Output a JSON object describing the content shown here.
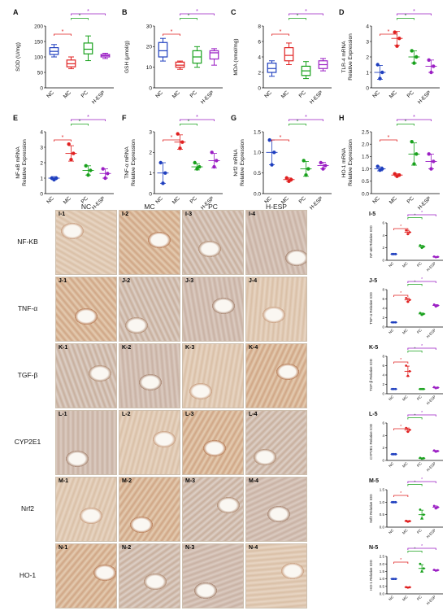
{
  "groups": [
    "NC",
    "MC",
    "PC",
    "H-ESP"
  ],
  "colors": {
    "NC": "#1f3fbf",
    "MC": "#e02020",
    "PC": "#18a11c",
    "H-ESP": "#9b1fc4",
    "sig": "#e02020"
  },
  "sig_marker": "*",
  "tissue_columns": [
    "NC",
    "MC",
    "PC",
    "H-ESP"
  ],
  "tissue_rows": [
    {
      "stain": "NF-KB",
      "panels": [
        "I-1",
        "I-2",
        "I-3",
        "I-4"
      ]
    },
    {
      "stain": "TNF-α",
      "panels": [
        "J-1",
        "J-2",
        "J-3",
        "J-4"
      ]
    },
    {
      "stain": "TGF-β",
      "panels": [
        "K-1",
        "K-2",
        "K-3",
        "K-4"
      ]
    },
    {
      "stain": "CYP2E1",
      "panels": [
        "L-1",
        "L-2",
        "L-3",
        "L-4"
      ]
    },
    {
      "stain": "Nrf2",
      "panels": [
        "M-1",
        "M-2",
        "M-3",
        "M-4"
      ]
    },
    {
      "stain": "HO-1",
      "panels": [
        "N-1",
        "N-2",
        "N-3",
        "N-4"
      ]
    }
  ],
  "chart_data": [
    {
      "panel": "A",
      "type": "box",
      "ylabel": "SOD (U/mg)",
      "ylim": [
        0,
        200
      ],
      "yticks": [
        0,
        50,
        100,
        150,
        200
      ],
      "boxes": [
        {
          "min": 100,
          "q1": 108,
          "median": 118,
          "q3": 130,
          "max": 140
        },
        {
          "min": 62,
          "q1": 68,
          "median": 78,
          "q3": 90,
          "max": 100
        },
        {
          "min": 88,
          "q1": 110,
          "median": 125,
          "q3": 145,
          "max": 168
        },
        {
          "min": 95,
          "q1": 100,
          "median": 104,
          "q3": 108,
          "max": 112
        }
      ],
      "brackets": [
        {
          "from": 0,
          "to": 1
        },
        {
          "from": 1,
          "to": 2
        },
        {
          "from": 1,
          "to": 3
        }
      ]
    },
    {
      "panel": "B",
      "type": "box",
      "ylabel": "GSH (μmol/g)",
      "ylim": [
        0,
        30
      ],
      "yticks": [
        0,
        10,
        20,
        30
      ],
      "boxes": [
        {
          "min": 13,
          "q1": 15,
          "median": 18,
          "q3": 22,
          "max": 24
        },
        {
          "min": 9,
          "q1": 10,
          "median": 11,
          "q3": 12.5,
          "max": 13
        },
        {
          "min": 10,
          "q1": 12,
          "median": 15,
          "q3": 18,
          "max": 20
        },
        {
          "min": 11,
          "q1": 14,
          "median": 17,
          "q3": 18,
          "max": 19
        }
      ],
      "brackets": [
        {
          "from": 0,
          "to": 1
        },
        {
          "from": 1,
          "to": 2
        },
        {
          "from": 1,
          "to": 3
        }
      ]
    },
    {
      "panel": "C",
      "type": "box",
      "ylabel": "MDA (nmol/mg)",
      "ylim": [
        0,
        8
      ],
      "yticks": [
        0,
        2,
        4,
        6,
        8
      ],
      "boxes": [
        {
          "min": 1.5,
          "q1": 2,
          "median": 2.5,
          "q3": 3.2,
          "max": 3.5
        },
        {
          "min": 3,
          "q1": 3.5,
          "median": 4.2,
          "q3": 5.2,
          "max": 5.8
        },
        {
          "min": 1.2,
          "q1": 1.6,
          "median": 2.2,
          "q3": 2.8,
          "max": 3.4
        },
        {
          "min": 2.2,
          "q1": 2.5,
          "median": 3,
          "q3": 3.5,
          "max": 3.8
        }
      ],
      "brackets": [
        {
          "from": 0,
          "to": 1
        },
        {
          "from": 1,
          "to": 2
        },
        {
          "from": 1,
          "to": 3
        }
      ]
    },
    {
      "panel": "D",
      "type": "scatter",
      "ylabel": "TLR-4 mRNA\nRelative Expression",
      "ylim": [
        0,
        4
      ],
      "yticks": [
        0,
        1,
        2,
        3,
        4
      ],
      "points": [
        [
          1.5,
          0.6,
          1.0
        ],
        [
          3.6,
          2.7,
          3.2
        ],
        [
          2.4,
          1.6,
          2.0
        ],
        [
          1.8,
          1.0,
          1.4
        ]
      ],
      "means": [
        1.0,
        3.2,
        2.0,
        1.4
      ],
      "sd": [
        0.45,
        0.45,
        0.4,
        0.4
      ],
      "brackets": [
        {
          "from": 0,
          "to": 1
        },
        {
          "from": 1,
          "to": 2
        },
        {
          "from": 1,
          "to": 3
        }
      ]
    },
    {
      "panel": "E",
      "type": "scatter",
      "ylabel": "NF-κB mRNA\nRelative Expression",
      "ylim": [
        0,
        4
      ],
      "yticks": [
        0,
        1,
        2,
        3,
        4
      ],
      "points": [
        [
          1.0,
          0.9,
          1.0
        ],
        [
          3.2,
          2.2,
          2.6
        ],
        [
          1.8,
          1.2,
          1.5
        ],
        [
          1.6,
          1.0,
          1.3
        ]
      ],
      "means": [
        1.0,
        2.6,
        1.5,
        1.3
      ],
      "sd": [
        0.1,
        0.5,
        0.3,
        0.3
      ],
      "brackets": [
        {
          "from": 0,
          "to": 1
        },
        {
          "from": 1,
          "to": 2
        },
        {
          "from": 1,
          "to": 3
        }
      ]
    },
    {
      "panel": "F",
      "type": "scatter",
      "ylabel": "TNF-α mRNA\nRelative Expression",
      "ylim": [
        0,
        3
      ],
      "yticks": [
        0,
        1,
        2,
        3
      ],
      "points": [
        [
          1.5,
          0.5,
          1.0
        ],
        [
          2.9,
          2.2,
          2.5
        ],
        [
          1.5,
          1.2,
          1.3
        ],
        [
          2.0,
          1.3,
          1.6
        ]
      ],
      "means": [
        1.0,
        2.5,
        1.3,
        1.6
      ],
      "sd": [
        0.5,
        0.35,
        0.15,
        0.35
      ],
      "brackets": [
        {
          "from": 0,
          "to": 1
        },
        {
          "from": 1,
          "to": 2
        },
        {
          "from": 1,
          "to": 3
        }
      ]
    },
    {
      "panel": "G",
      "type": "scatter",
      "ylabel": "Nrf2 mRNA\nRelative Expression",
      "ylim": [
        0.0,
        1.5
      ],
      "yticks": [
        0.0,
        0.5,
        1.0,
        1.5
      ],
      "points": [
        [
          1.3,
          0.7,
          1.0
        ],
        [
          0.38,
          0.3,
          0.34
        ],
        [
          0.8,
          0.45,
          0.6
        ],
        [
          0.75,
          0.6,
          0.68
        ]
      ],
      "means": [
        1.0,
        0.34,
        0.6,
        0.68
      ],
      "sd": [
        0.3,
        0.04,
        0.18,
        0.08
      ],
      "brackets": [
        {
          "from": 0,
          "to": 1
        },
        {
          "from": 1,
          "to": 2
        },
        {
          "from": 1,
          "to": 3
        }
      ]
    },
    {
      "panel": "H",
      "type": "scatter",
      "ylabel": "HO-1 mRNA\nRelative Expression",
      "ylim": [
        0.0,
        2.5
      ],
      "yticks": [
        0.0,
        0.5,
        1.0,
        1.5,
        2.0,
        2.5
      ],
      "points": [
        [
          1.1,
          0.95,
          1.0
        ],
        [
          0.8,
          0.7,
          0.75
        ],
        [
          2.1,
          1.2,
          1.6
        ],
        [
          1.6,
          1.0,
          1.3
        ]
      ],
      "means": [
        1.0,
        0.75,
        1.6,
        1.3
      ],
      "sd": [
        0.08,
        0.05,
        0.45,
        0.3
      ],
      "brackets": [
        {
          "from": 0,
          "to": 1
        },
        {
          "from": 1,
          "to": 2
        },
        {
          "from": 1,
          "to": 3
        }
      ]
    },
    {
      "panel": "I-5",
      "type": "scatter",
      "ylabel": "NF-κB Relative IOD",
      "ylim": [
        0,
        6
      ],
      "yticks": [
        0,
        2,
        4,
        6
      ],
      "points": [
        [
          1,
          1,
          1
        ],
        [
          4.8,
          4.2,
          4.5
        ],
        [
          2.4,
          2.0,
          2.2
        ],
        [
          0.6,
          0.5,
          0.55
        ]
      ],
      "means": [
        1,
        4.5,
        2.2,
        0.55
      ],
      "sd": [
        0,
        0.3,
        0.2,
        0.05
      ],
      "brackets": [
        {
          "from": 0,
          "to": 1
        },
        {
          "from": 1,
          "to": 2
        },
        {
          "from": 1,
          "to": 3
        }
      ]
    },
    {
      "panel": "J-5",
      "type": "scatter",
      "ylabel": "TNF-α Relative IOD",
      "ylim": [
        0,
        8
      ],
      "yticks": [
        0,
        2,
        4,
        6,
        8
      ],
      "points": [
        [
          1,
          1,
          1
        ],
        [
          6.2,
          5.4,
          5.8
        ],
        [
          3.0,
          2.6,
          2.8
        ],
        [
          4.8,
          4.4,
          4.6
        ]
      ],
      "means": [
        1,
        5.8,
        2.8,
        4.6
      ],
      "sd": [
        0,
        0.4,
        0.2,
        0.2
      ],
      "brackets": [
        {
          "from": 0,
          "to": 1
        },
        {
          "from": 1,
          "to": 2
        },
        {
          "from": 1,
          "to": 3
        }
      ]
    },
    {
      "panel": "K-5",
      "type": "scatter",
      "ylabel": "TGF-β Relative IOD",
      "ylim": [
        0,
        8
      ],
      "yticks": [
        0,
        2,
        4,
        6,
        8
      ],
      "points": [
        [
          1,
          1,
          1
        ],
        [
          6.0,
          3.8,
          4.8
        ],
        [
          1,
          1,
          1
        ],
        [
          1.4,
          1.2,
          1.3
        ]
      ],
      "means": [
        1,
        4.8,
        1,
        1.3
      ],
      "sd": [
        0,
        1.1,
        0,
        0.1
      ],
      "brackets": [
        {
          "from": 0,
          "to": 1
        },
        {
          "from": 1,
          "to": 2
        },
        {
          "from": 1,
          "to": 3
        }
      ]
    },
    {
      "panel": "L-5",
      "type": "scatter",
      "ylabel": "CYP2E1 Relative IOD",
      "ylim": [
        0,
        6
      ],
      "yticks": [
        0,
        2,
        4,
        6
      ],
      "points": [
        [
          1,
          1,
          1
        ],
        [
          5.2,
          4.6,
          4.9
        ],
        [
          0.4,
          0.3,
          0.35
        ],
        [
          1.6,
          1.4,
          1.5
        ]
      ],
      "means": [
        1,
        4.9,
        0.35,
        1.5
      ],
      "sd": [
        0,
        0.3,
        0.05,
        0.1
      ],
      "brackets": [
        {
          "from": 0,
          "to": 1
        },
        {
          "from": 1,
          "to": 2
        },
        {
          "from": 1,
          "to": 3
        }
      ]
    },
    {
      "panel": "M-5",
      "type": "scatter",
      "ylabel": "Nrf2 Relative IOD",
      "ylim": [
        0.0,
        1.5
      ],
      "yticks": [
        0.0,
        0.5,
        1.0,
        1.5
      ],
      "points": [
        [
          1,
          1,
          1
        ],
        [
          0.25,
          0.22,
          0.24
        ],
        [
          0.7,
          0.35,
          0.5
        ],
        [
          0.85,
          0.75,
          0.8
        ]
      ],
      "means": [
        1,
        0.24,
        0.5,
        0.8
      ],
      "sd": [
        0,
        0.02,
        0.18,
        0.05
      ],
      "brackets": [
        {
          "from": 0,
          "to": 1
        },
        {
          "from": 1,
          "to": 2
        },
        {
          "from": 1,
          "to": 3
        }
      ]
    },
    {
      "panel": "N-5",
      "type": "scatter",
      "ylabel": "HO-1 Relative IOD",
      "ylim": [
        0.0,
        2.5
      ],
      "yticks": [
        0.0,
        0.5,
        1.0,
        1.5,
        2.0,
        2.5
      ],
      "points": [
        [
          1,
          1,
          1
        ],
        [
          0.45,
          0.42,
          0.44
        ],
        [
          2.0,
          1.5,
          1.7
        ],
        [
          1.6,
          1.55,
          1.58
        ]
      ],
      "means": [
        1,
        0.44,
        1.7,
        1.58
      ],
      "sd": [
        0,
        0.02,
        0.25,
        0.03
      ],
      "brackets": [
        {
          "from": 0,
          "to": 1
        },
        {
          "from": 1,
          "to": 2
        },
        {
          "from": 1,
          "to": 3
        }
      ]
    }
  ]
}
